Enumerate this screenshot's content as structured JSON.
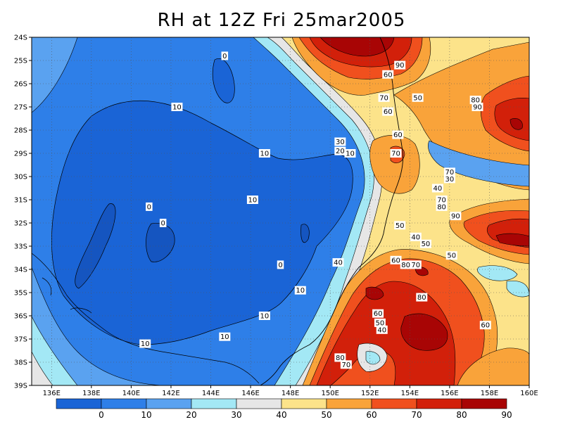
{
  "title": "RH at 12Z Fri 25mar2005",
  "map": {
    "lon_labels": [
      "136E",
      "138E",
      "140E",
      "142E",
      "144E",
      "146E",
      "148E",
      "150E",
      "152E",
      "154E",
      "156E",
      "158E",
      "160E"
    ],
    "lat_labels": [
      "24S",
      "25S",
      "26S",
      "27S",
      "28S",
      "29S",
      "30S",
      "31S",
      "32S",
      "33S",
      "34S",
      "35S",
      "36S",
      "37S",
      "38S",
      "39S"
    ],
    "contour_labels": [
      {
        "text": "0",
        "lon": 144.7,
        "lat": -24.8
      },
      {
        "text": "10",
        "lon": 142.3,
        "lat": -27.0
      },
      {
        "text": "10",
        "lon": 146.7,
        "lat": -29.0
      },
      {
        "text": "10",
        "lon": 146.1,
        "lat": -31.0
      },
      {
        "text": "0",
        "lon": 140.9,
        "lat": -31.3
      },
      {
        "text": "0",
        "lon": 141.6,
        "lat": -32.0
      },
      {
        "text": "0",
        "lon": 147.5,
        "lat": -33.8
      },
      {
        "text": "10",
        "lon": 148.5,
        "lat": -34.9
      },
      {
        "text": "10",
        "lon": 146.7,
        "lat": -36.0
      },
      {
        "text": "10",
        "lon": 144.7,
        "lat": -36.9
      },
      {
        "text": "10",
        "lon": 140.7,
        "lat": -37.2
      },
      {
        "text": "30",
        "lon": 150.5,
        "lat": -28.5
      },
      {
        "text": "20",
        "lon": 150.5,
        "lat": -28.9
      },
      {
        "text": "10",
        "lon": 151.0,
        "lat": -29.0
      },
      {
        "text": "40",
        "lon": 150.4,
        "lat": -33.7
      },
      {
        "text": "60",
        "lon": 152.9,
        "lat": -25.6
      },
      {
        "text": "90",
        "lon": 153.5,
        "lat": -25.2
      },
      {
        "text": "70",
        "lon": 152.7,
        "lat": -26.6
      },
      {
        "text": "60",
        "lon": 152.9,
        "lat": -27.2
      },
      {
        "text": "50",
        "lon": 154.4,
        "lat": -26.6
      },
      {
        "text": "60",
        "lon": 153.4,
        "lat": -28.2
      },
      {
        "text": "70",
        "lon": 153.3,
        "lat": -29.0
      },
      {
        "text": "80",
        "lon": 157.3,
        "lat": -26.7
      },
      {
        "text": "90",
        "lon": 157.4,
        "lat": -27.0
      },
      {
        "text": "70",
        "lon": 156.0,
        "lat": -29.8
      },
      {
        "text": "30",
        "lon": 156.0,
        "lat": -30.1
      },
      {
        "text": "40",
        "lon": 155.4,
        "lat": -30.5
      },
      {
        "text": "70",
        "lon": 155.6,
        "lat": -31.0
      },
      {
        "text": "80",
        "lon": 155.6,
        "lat": -31.3
      },
      {
        "text": "90",
        "lon": 156.3,
        "lat": -31.7
      },
      {
        "text": "50",
        "lon": 153.5,
        "lat": -32.1
      },
      {
        "text": "40",
        "lon": 154.3,
        "lat": -32.6
      },
      {
        "text": "50",
        "lon": 154.8,
        "lat": -32.9
      },
      {
        "text": "50",
        "lon": 156.1,
        "lat": -33.4
      },
      {
        "text": "60",
        "lon": 153.3,
        "lat": -33.6
      },
      {
        "text": "80",
        "lon": 153.8,
        "lat": -33.8
      },
      {
        "text": "70",
        "lon": 154.3,
        "lat": -33.8
      },
      {
        "text": "80",
        "lon": 154.6,
        "lat": -35.2
      },
      {
        "text": "60",
        "lon": 152.4,
        "lat": -35.9
      },
      {
        "text": "50",
        "lon": 152.5,
        "lat": -36.3
      },
      {
        "text": "40",
        "lon": 152.6,
        "lat": -36.6
      },
      {
        "text": "80",
        "lon": 150.5,
        "lat": -37.8
      },
      {
        "text": "70",
        "lon": 150.8,
        "lat": -38.1
      },
      {
        "text": "60",
        "lon": 157.8,
        "lat": -36.4
      }
    ]
  },
  "colorbar": {
    "colors": [
      "#1a64d6",
      "#2e7fe8",
      "#5aa2f0",
      "#a3e8f5",
      "#e6e6e6",
      "#fce38a",
      "#f9a33a",
      "#f0501e",
      "#d2200a",
      "#a80505"
    ],
    "tick_labels": [
      "0",
      "10",
      "20",
      "30",
      "40",
      "50",
      "60",
      "70",
      "80",
      "90"
    ]
  }
}
